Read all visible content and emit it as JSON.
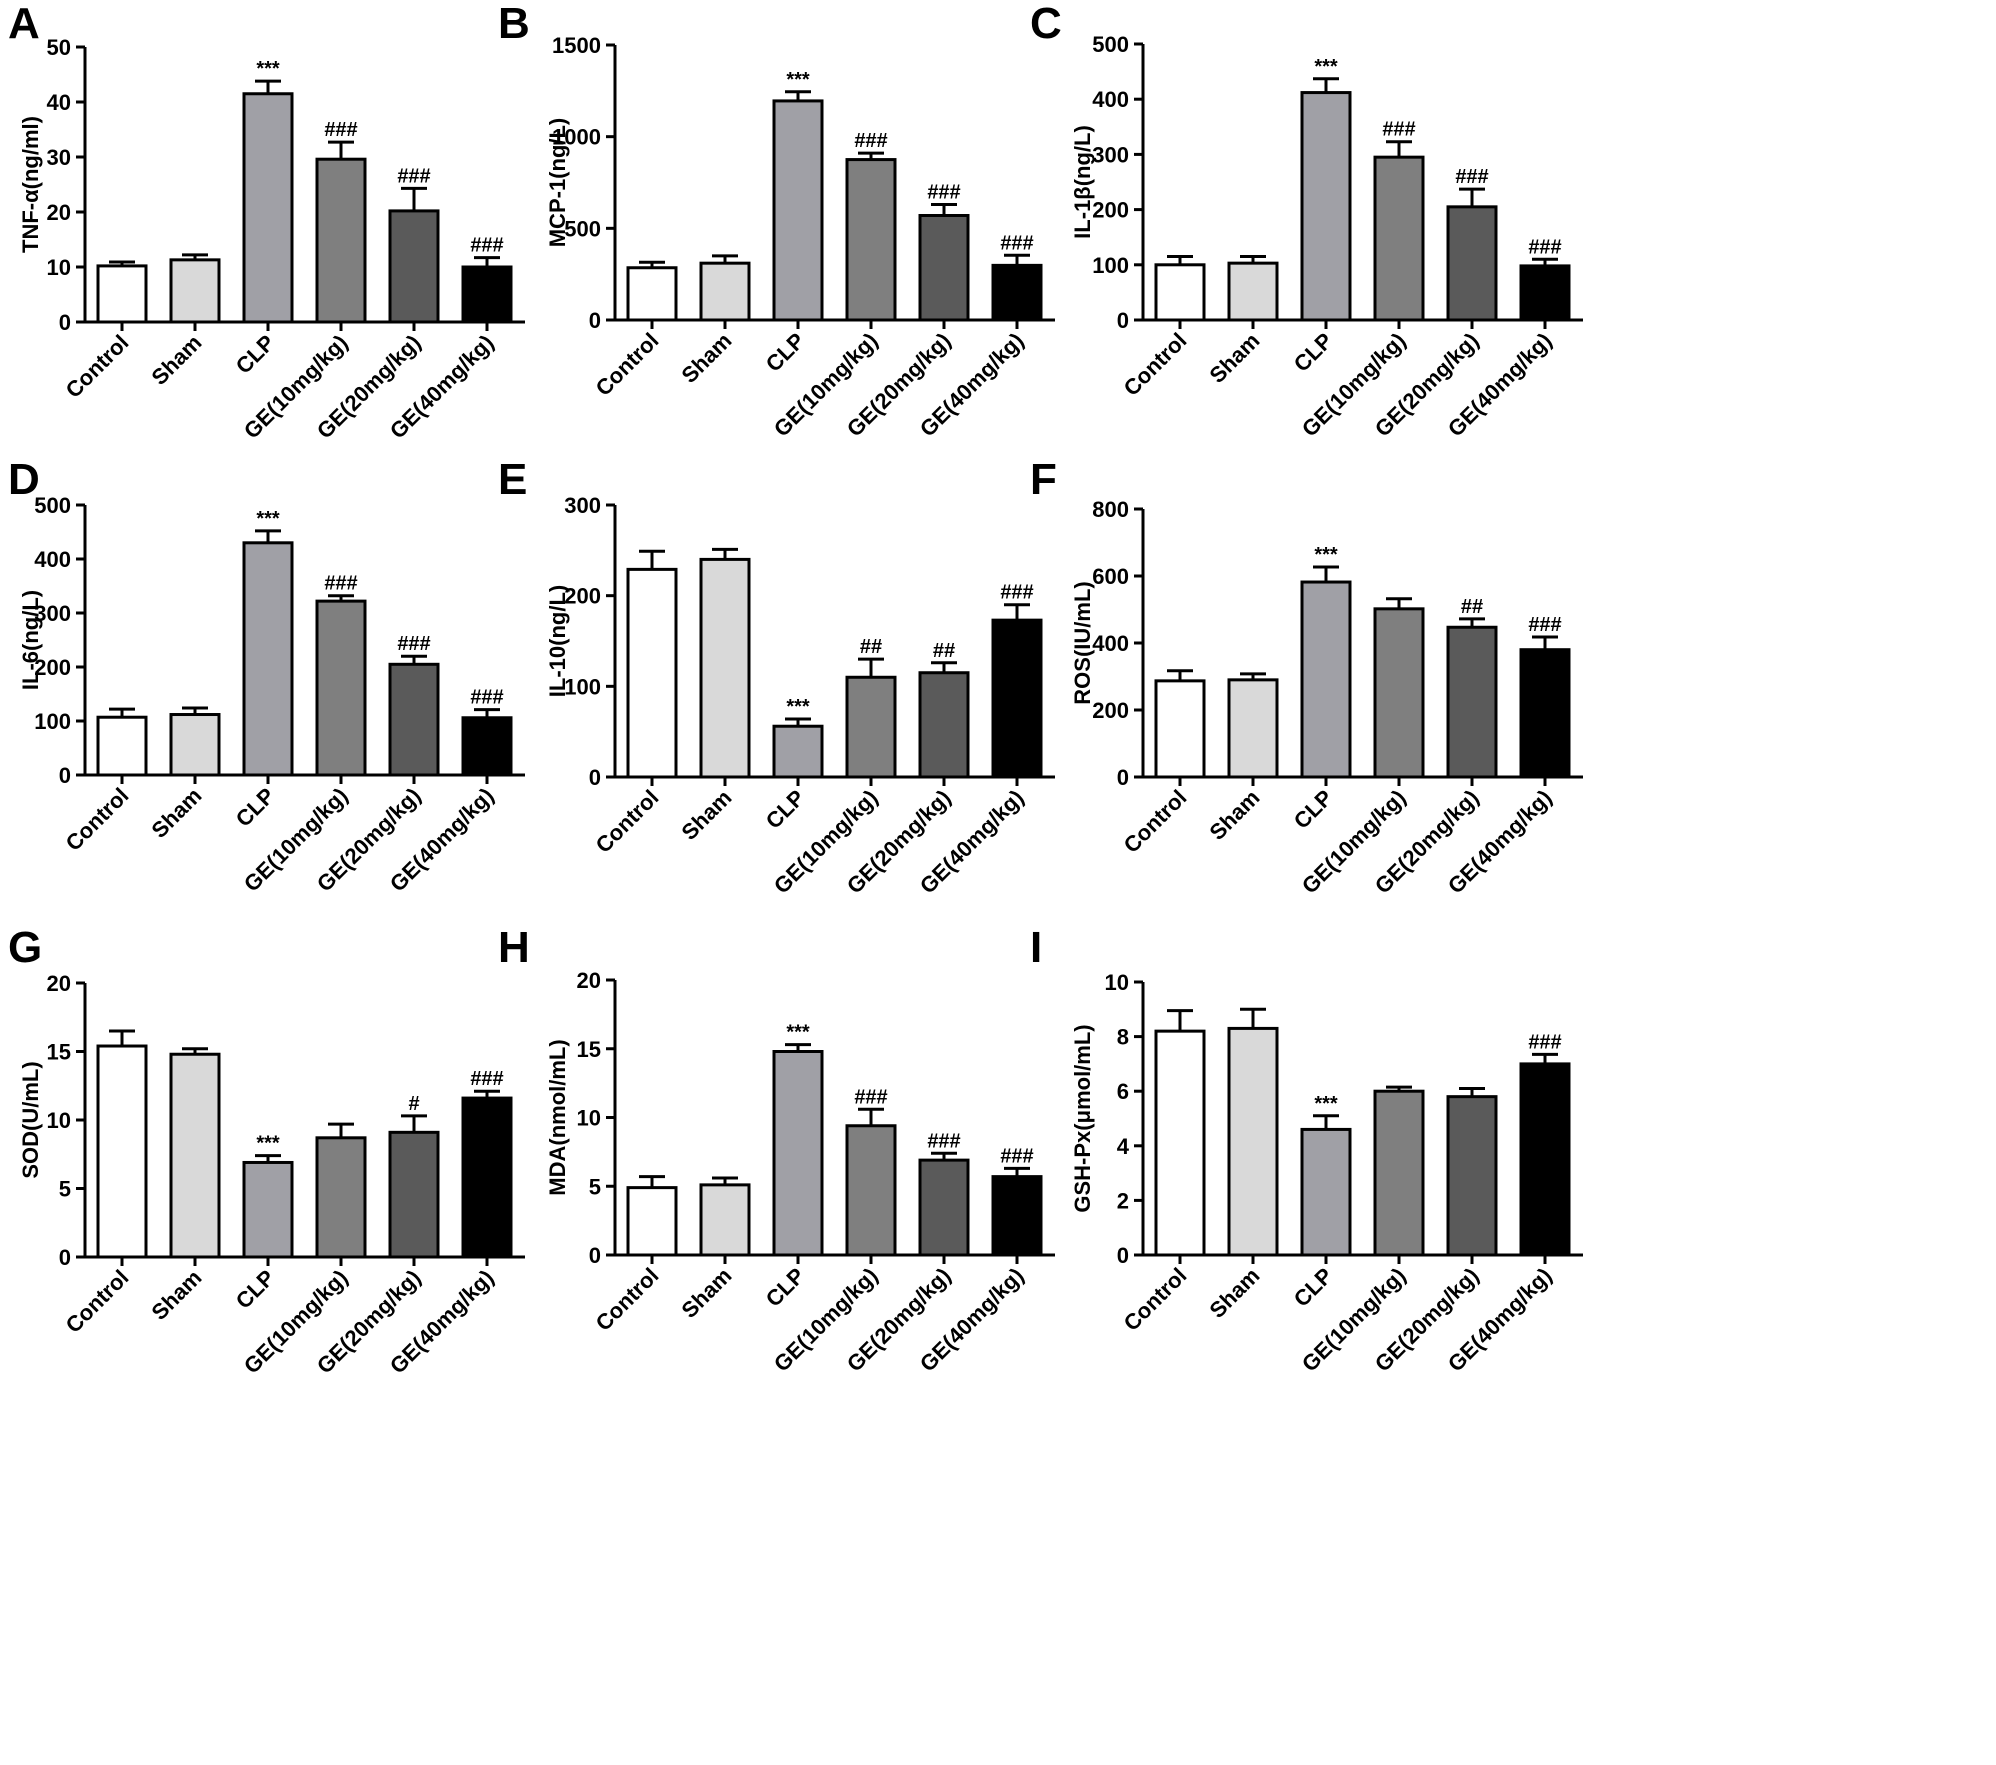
{
  "chart_data": [
    {
      "panel": "A",
      "type": "bar",
      "ylabel": "TNF-α(ng/ml)",
      "categories": [
        "Control",
        "Sham",
        "CLP",
        "GE(10mg/kg)",
        "GE(20mg/kg)",
        "GE(40mg/kg)"
      ],
      "values": [
        10.2,
        11.3,
        41.5,
        29.6,
        20.2,
        10.0
      ],
      "errors": [
        0.7,
        0.9,
        2.3,
        3.1,
        4.1,
        1.7
      ],
      "annotations": [
        "",
        "",
        "***",
        "###",
        "###",
        "###"
      ],
      "ylim": [
        0,
        50
      ],
      "yticks": [
        0,
        10,
        20,
        30,
        40,
        50
      ]
    },
    {
      "panel": "B",
      "type": "bar",
      "ylabel": "MCP-1(ng/L)",
      "categories": [
        "Control",
        "Sham",
        "CLP",
        "GE(10mg/kg)",
        "GE(20mg/kg)",
        "GE(40mg/kg)"
      ],
      "values": [
        285,
        310,
        1195,
        875,
        570,
        298
      ],
      "errors": [
        30,
        40,
        50,
        35,
        60,
        55
      ],
      "annotations": [
        "",
        "",
        "***",
        "###",
        "###",
        "###"
      ],
      "ylim": [
        0,
        1500
      ],
      "yticks": [
        0,
        500,
        1000,
        1500
      ]
    },
    {
      "panel": "C",
      "type": "bar",
      "ylabel": "IL-1β(ng/L)",
      "categories": [
        "Control",
        "Sham",
        "CLP",
        "GE(10mg/kg)",
        "GE(20mg/kg)",
        "GE(40mg/kg)"
      ],
      "values": [
        100,
        103,
        412,
        295,
        205,
        98
      ],
      "errors": [
        15,
        12,
        25,
        28,
        32,
        12
      ],
      "annotations": [
        "",
        "",
        "***",
        "###",
        "###",
        "###"
      ],
      "ylim": [
        0,
        500
      ],
      "yticks": [
        0,
        100,
        200,
        300,
        400,
        500
      ]
    },
    {
      "panel": "D",
      "type": "bar",
      "ylabel": "IL-6(ng/L)",
      "categories": [
        "Control",
        "Sham",
        "CLP",
        "GE(10mg/kg)",
        "GE(20mg/kg)",
        "GE(40mg/kg)"
      ],
      "values": [
        107,
        112,
        430,
        322,
        205,
        106
      ],
      "errors": [
        15,
        12,
        22,
        10,
        15,
        15
      ],
      "annotations": [
        "",
        "",
        "***",
        "###",
        "###",
        "###"
      ],
      "ylim": [
        0,
        500
      ],
      "yticks": [
        0,
        100,
        200,
        300,
        400,
        500
      ]
    },
    {
      "panel": "E",
      "type": "bar",
      "ylabel": "IL-10(ng/L)",
      "categories": [
        "Control",
        "Sham",
        "CLP",
        "GE(10mg/kg)",
        "GE(20mg/kg)",
        "GE(40mg/kg)"
      ],
      "values": [
        229,
        240,
        56,
        110,
        115,
        173
      ],
      "errors": [
        20,
        11,
        8,
        20,
        11,
        17
      ],
      "annotations": [
        "",
        "",
        "***",
        "##",
        "##",
        "###"
      ],
      "ylim": [
        0,
        300
      ],
      "yticks": [
        0,
        100,
        200,
        300
      ]
    },
    {
      "panel": "F",
      "type": "bar",
      "ylabel": "ROS(IU/mL)",
      "categories": [
        "Control",
        "Sham",
        "CLP",
        "GE(10mg/kg)",
        "GE(20mg/kg)",
        "GE(40mg/kg)"
      ],
      "values": [
        287,
        290,
        582,
        502,
        447,
        380
      ],
      "errors": [
        30,
        18,
        45,
        30,
        25,
        38
      ],
      "annotations": [
        "",
        "",
        "***",
        "",
        "##",
        "###"
      ],
      "ylim": [
        0,
        800
      ],
      "yticks": [
        0,
        200,
        400,
        600,
        800
      ]
    },
    {
      "panel": "G",
      "type": "bar",
      "ylabel": "SOD(U/mL)",
      "categories": [
        "Control",
        "Sham",
        "CLP",
        "GE(10mg/kg)",
        "GE(20mg/kg)",
        "GE(40mg/kg)"
      ],
      "values": [
        15.4,
        14.8,
        6.9,
        8.7,
        9.1,
        11.6
      ],
      "errors": [
        1.1,
        0.4,
        0.5,
        1.0,
        1.2,
        0.5
      ],
      "annotations": [
        "",
        "",
        "***",
        "",
        "#",
        "###"
      ],
      "ylim": [
        0,
        20
      ],
      "yticks": [
        0,
        5,
        10,
        15,
        20
      ]
    },
    {
      "panel": "H",
      "type": "bar",
      "ylabel": "MDA(nmol/mL)",
      "categories": [
        "Control",
        "Sham",
        "CLP",
        "GE(10mg/kg)",
        "GE(20mg/kg)",
        "GE(40mg/kg)"
      ],
      "values": [
        4.9,
        5.1,
        14.8,
        9.4,
        6.9,
        5.7
      ],
      "errors": [
        0.8,
        0.5,
        0.5,
        1.2,
        0.5,
        0.6
      ],
      "annotations": [
        "",
        "",
        "***",
        "###",
        "###",
        "###"
      ],
      "ylim": [
        0,
        20
      ],
      "yticks": [
        0,
        5,
        10,
        15,
        20
      ]
    },
    {
      "panel": "I",
      "type": "bar",
      "ylabel": "GSH-Px(μmol/mL)",
      "categories": [
        "Control",
        "Sham",
        "CLP",
        "GE(10mg/kg)",
        "GE(20mg/kg)",
        "GE(40mg/kg)"
      ],
      "values": [
        8.2,
        8.3,
        4.6,
        6.0,
        5.8,
        7.0
      ],
      "errors": [
        0.75,
        0.7,
        0.5,
        0.15,
        0.3,
        0.35
      ],
      "annotations": [
        "",
        "",
        "***",
        "",
        "",
        "###"
      ],
      "ylim": [
        0,
        10
      ],
      "yticks": [
        0,
        2,
        4,
        6,
        8,
        10
      ]
    }
  ],
  "colors": {
    "fills": [
      "#ffffff",
      "#d9d9d9",
      "#a0a0a6",
      "#7f7f7f",
      "#5a5a5a",
      "#000000"
    ],
    "stroke": "#000000"
  }
}
